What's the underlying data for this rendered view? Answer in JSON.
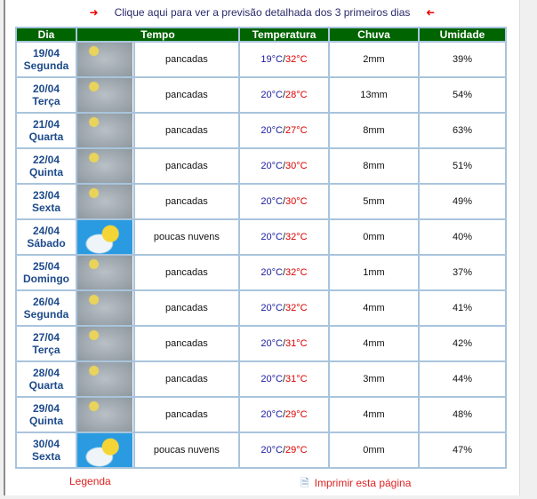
{
  "link_text": "Clique aqui para ver a previsão detalhada dos 3 primeiros dias",
  "headers": [
    "Dia",
    "Tempo",
    "Temperatura",
    "Chuva",
    "Umidade"
  ],
  "rows": [
    {
      "date": "19/04",
      "day": "Segunda",
      "icon": "cloudy-storm",
      "desc": "pancadas",
      "tmin": "19°C",
      "tmax": "32°C",
      "rain": "2mm",
      "hum": "39%"
    },
    {
      "date": "20/04",
      "day": "Terça",
      "icon": "cloudy-storm",
      "desc": "pancadas",
      "tmin": "20°C",
      "tmax": "28°C",
      "rain": "13mm",
      "hum": "54%"
    },
    {
      "date": "21/04",
      "day": "Quarta",
      "icon": "cloudy-storm",
      "desc": "pancadas",
      "tmin": "20°C",
      "tmax": "27°C",
      "rain": "8mm",
      "hum": "63%"
    },
    {
      "date": "22/04",
      "day": "Quinta",
      "icon": "cloudy-storm",
      "desc": "pancadas",
      "tmin": "20°C",
      "tmax": "30°C",
      "rain": "8mm",
      "hum": "51%"
    },
    {
      "date": "23/04",
      "day": "Sexta",
      "icon": "cloudy-storm",
      "desc": "pancadas",
      "tmin": "20°C",
      "tmax": "30°C",
      "rain": "5mm",
      "hum": "49%"
    },
    {
      "date": "24/04",
      "day": "Sábado",
      "icon": "sun-few-clouds",
      "desc": "poucas nuvens",
      "tmin": "20°C",
      "tmax": "32°C",
      "rain": "0mm",
      "hum": "40%"
    },
    {
      "date": "25/04",
      "day": "Domingo",
      "icon": "cloudy-storm",
      "desc": "pancadas",
      "tmin": "20°C",
      "tmax": "32°C",
      "rain": "1mm",
      "hum": "37%"
    },
    {
      "date": "26/04",
      "day": "Segunda",
      "icon": "cloudy-storm",
      "desc": "pancadas",
      "tmin": "20°C",
      "tmax": "32°C",
      "rain": "4mm",
      "hum": "41%"
    },
    {
      "date": "27/04",
      "day": "Terça",
      "icon": "cloudy-storm",
      "desc": "pancadas",
      "tmin": "20°C",
      "tmax": "31°C",
      "rain": "4mm",
      "hum": "42%"
    },
    {
      "date": "28/04",
      "day": "Quarta",
      "icon": "cloudy-storm",
      "desc": "pancadas",
      "tmin": "20°C",
      "tmax": "31°C",
      "rain": "3mm",
      "hum": "44%"
    },
    {
      "date": "29/04",
      "day": "Quinta",
      "icon": "cloudy-storm",
      "desc": "pancadas",
      "tmin": "20°C",
      "tmax": "29°C",
      "rain": "4mm",
      "hum": "48%"
    },
    {
      "date": "30/04",
      "day": "Sexta",
      "icon": "sun-few-clouds",
      "desc": "poucas nuvens",
      "tmin": "20°C",
      "tmax": "29°C",
      "rain": "0mm",
      "hum": "47%"
    }
  ],
  "footer": {
    "legenda": "Legenda",
    "print": "Imprimir esta página"
  }
}
